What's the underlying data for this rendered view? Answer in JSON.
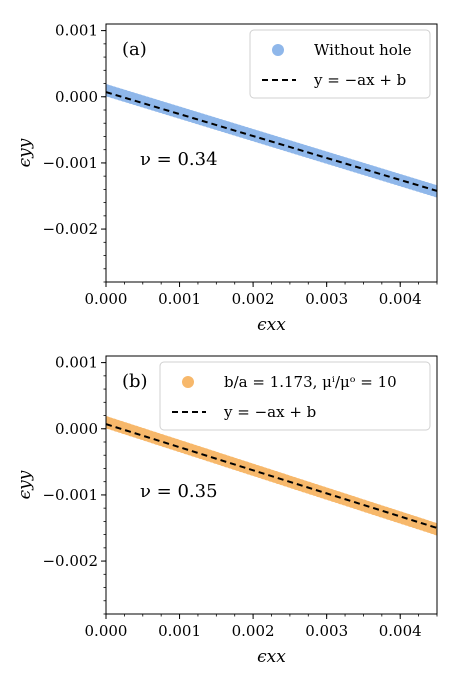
{
  "chart_data": [
    {
      "type": "scatter",
      "panel_label": "(a)",
      "xlabel": "ϵxx",
      "ylabel": "ϵyy",
      "xlim": [
        0,
        0.0045
      ],
      "ylim": [
        -0.0028,
        0.0011
      ],
      "xticks": [
        0.0,
        0.001,
        0.002,
        0.003,
        0.004
      ],
      "xtick_labels": [
        "0.000",
        "0.001",
        "0.002",
        "0.003",
        "0.004"
      ],
      "yticks": [
        0.001,
        0.0,
        -0.001,
        -0.002
      ],
      "ytick_labels": [
        "0.001",
        "0.000",
        "−0.001",
        "−0.002"
      ],
      "annotation": "ν = 0.34",
      "grid": false,
      "legend_position": "top-right",
      "series": [
        {
          "name": "Without hole",
          "kind": "points",
          "color": "#8fb7ea",
          "x_start": 0.0,
          "x_end": 0.0045,
          "y_start": 0.0001,
          "y_end": -0.00143
        },
        {
          "name": "y = −ax + b",
          "kind": "dashed-line",
          "color": "#000000",
          "x_start": 0.0,
          "x_end": 0.0045,
          "y_start": 7e-05,
          "y_end": -0.001423
        }
      ]
    },
    {
      "type": "scatter",
      "panel_label": "(b)",
      "xlabel": "ϵxx",
      "ylabel": "ϵyy",
      "xlim": [
        0,
        0.0045
      ],
      "ylim": [
        -0.0028,
        0.0011
      ],
      "xticks": [
        0.0,
        0.001,
        0.002,
        0.003,
        0.004
      ],
      "xtick_labels": [
        "0.000",
        "0.001",
        "0.002",
        "0.003",
        "0.004"
      ],
      "yticks": [
        0.001,
        0.0,
        -0.001,
        -0.002
      ],
      "ytick_labels": [
        "0.001",
        "0.000",
        "−0.001",
        "−0.002"
      ],
      "annotation": "ν = 0.35",
      "grid": false,
      "legend_position": "top-right",
      "series": [
        {
          "name": "b/a = 1.173,  μⁱ/μᵒ = 10",
          "kind": "points",
          "color": "#f7b86b",
          "x_start": 0.0,
          "x_end": 0.0045,
          "y_start": 0.0001,
          "y_end": -0.00152
        },
        {
          "name": "y = −ax + b",
          "kind": "dashed-line",
          "color": "#000000",
          "x_start": 0.0,
          "x_end": 0.0045,
          "y_start": 7e-05,
          "y_end": -0.0015
        }
      ]
    }
  ]
}
